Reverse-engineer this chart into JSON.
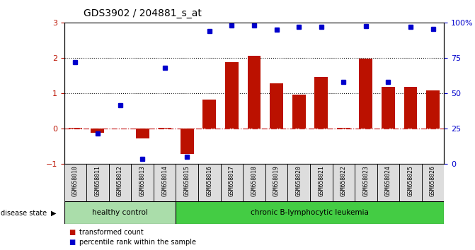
{
  "title": "GDS3902 / 204881_s_at",
  "samples": [
    "GSM658010",
    "GSM658011",
    "GSM658012",
    "GSM658013",
    "GSM658014",
    "GSM658015",
    "GSM658016",
    "GSM658017",
    "GSM658018",
    "GSM658019",
    "GSM658020",
    "GSM658021",
    "GSM658022",
    "GSM658023",
    "GSM658024",
    "GSM658025",
    "GSM658026"
  ],
  "bar_values": [
    0.02,
    -0.12,
    0.0,
    -0.28,
    0.02,
    -0.72,
    0.82,
    1.88,
    2.05,
    1.27,
    0.95,
    1.45,
    0.02,
    1.97,
    1.18,
    1.18,
    1.07
  ],
  "dot_values_left": [
    1.87,
    -0.14,
    0.65,
    -0.87,
    1.72,
    -0.8,
    2.75,
    2.92,
    2.92,
    2.8,
    2.87,
    2.87,
    1.32,
    2.9,
    1.32,
    2.87,
    2.82
  ],
  "bar_color": "#bb1100",
  "dot_color": "#0000cc",
  "healthy_control_count": 5,
  "healthy_label": "healthy control",
  "leukemia_label": "chronic B-lymphocytic leukemia",
  "healthy_color": "#aaddaa",
  "leukemia_color": "#44cc44",
  "disease_state_label": "disease state",
  "legend_bar": "transformed count",
  "legend_dot": "percentile rank within the sample",
  "ylim_left": [
    -1,
    3
  ],
  "yticks_left": [
    -1,
    0,
    1,
    2,
    3
  ],
  "yticks_right_labels": [
    "0",
    "25",
    "50",
    "75",
    "100%"
  ],
  "yticks_right_pos": [
    -1,
    0,
    1,
    2,
    3
  ],
  "hline_zero_color": "#cc3333",
  "hline_dotted_color": "#111111",
  "background_color": "#ffffff",
  "label_box_color": "#dddddd",
  "xlim": [
    -0.5,
    16.5
  ]
}
